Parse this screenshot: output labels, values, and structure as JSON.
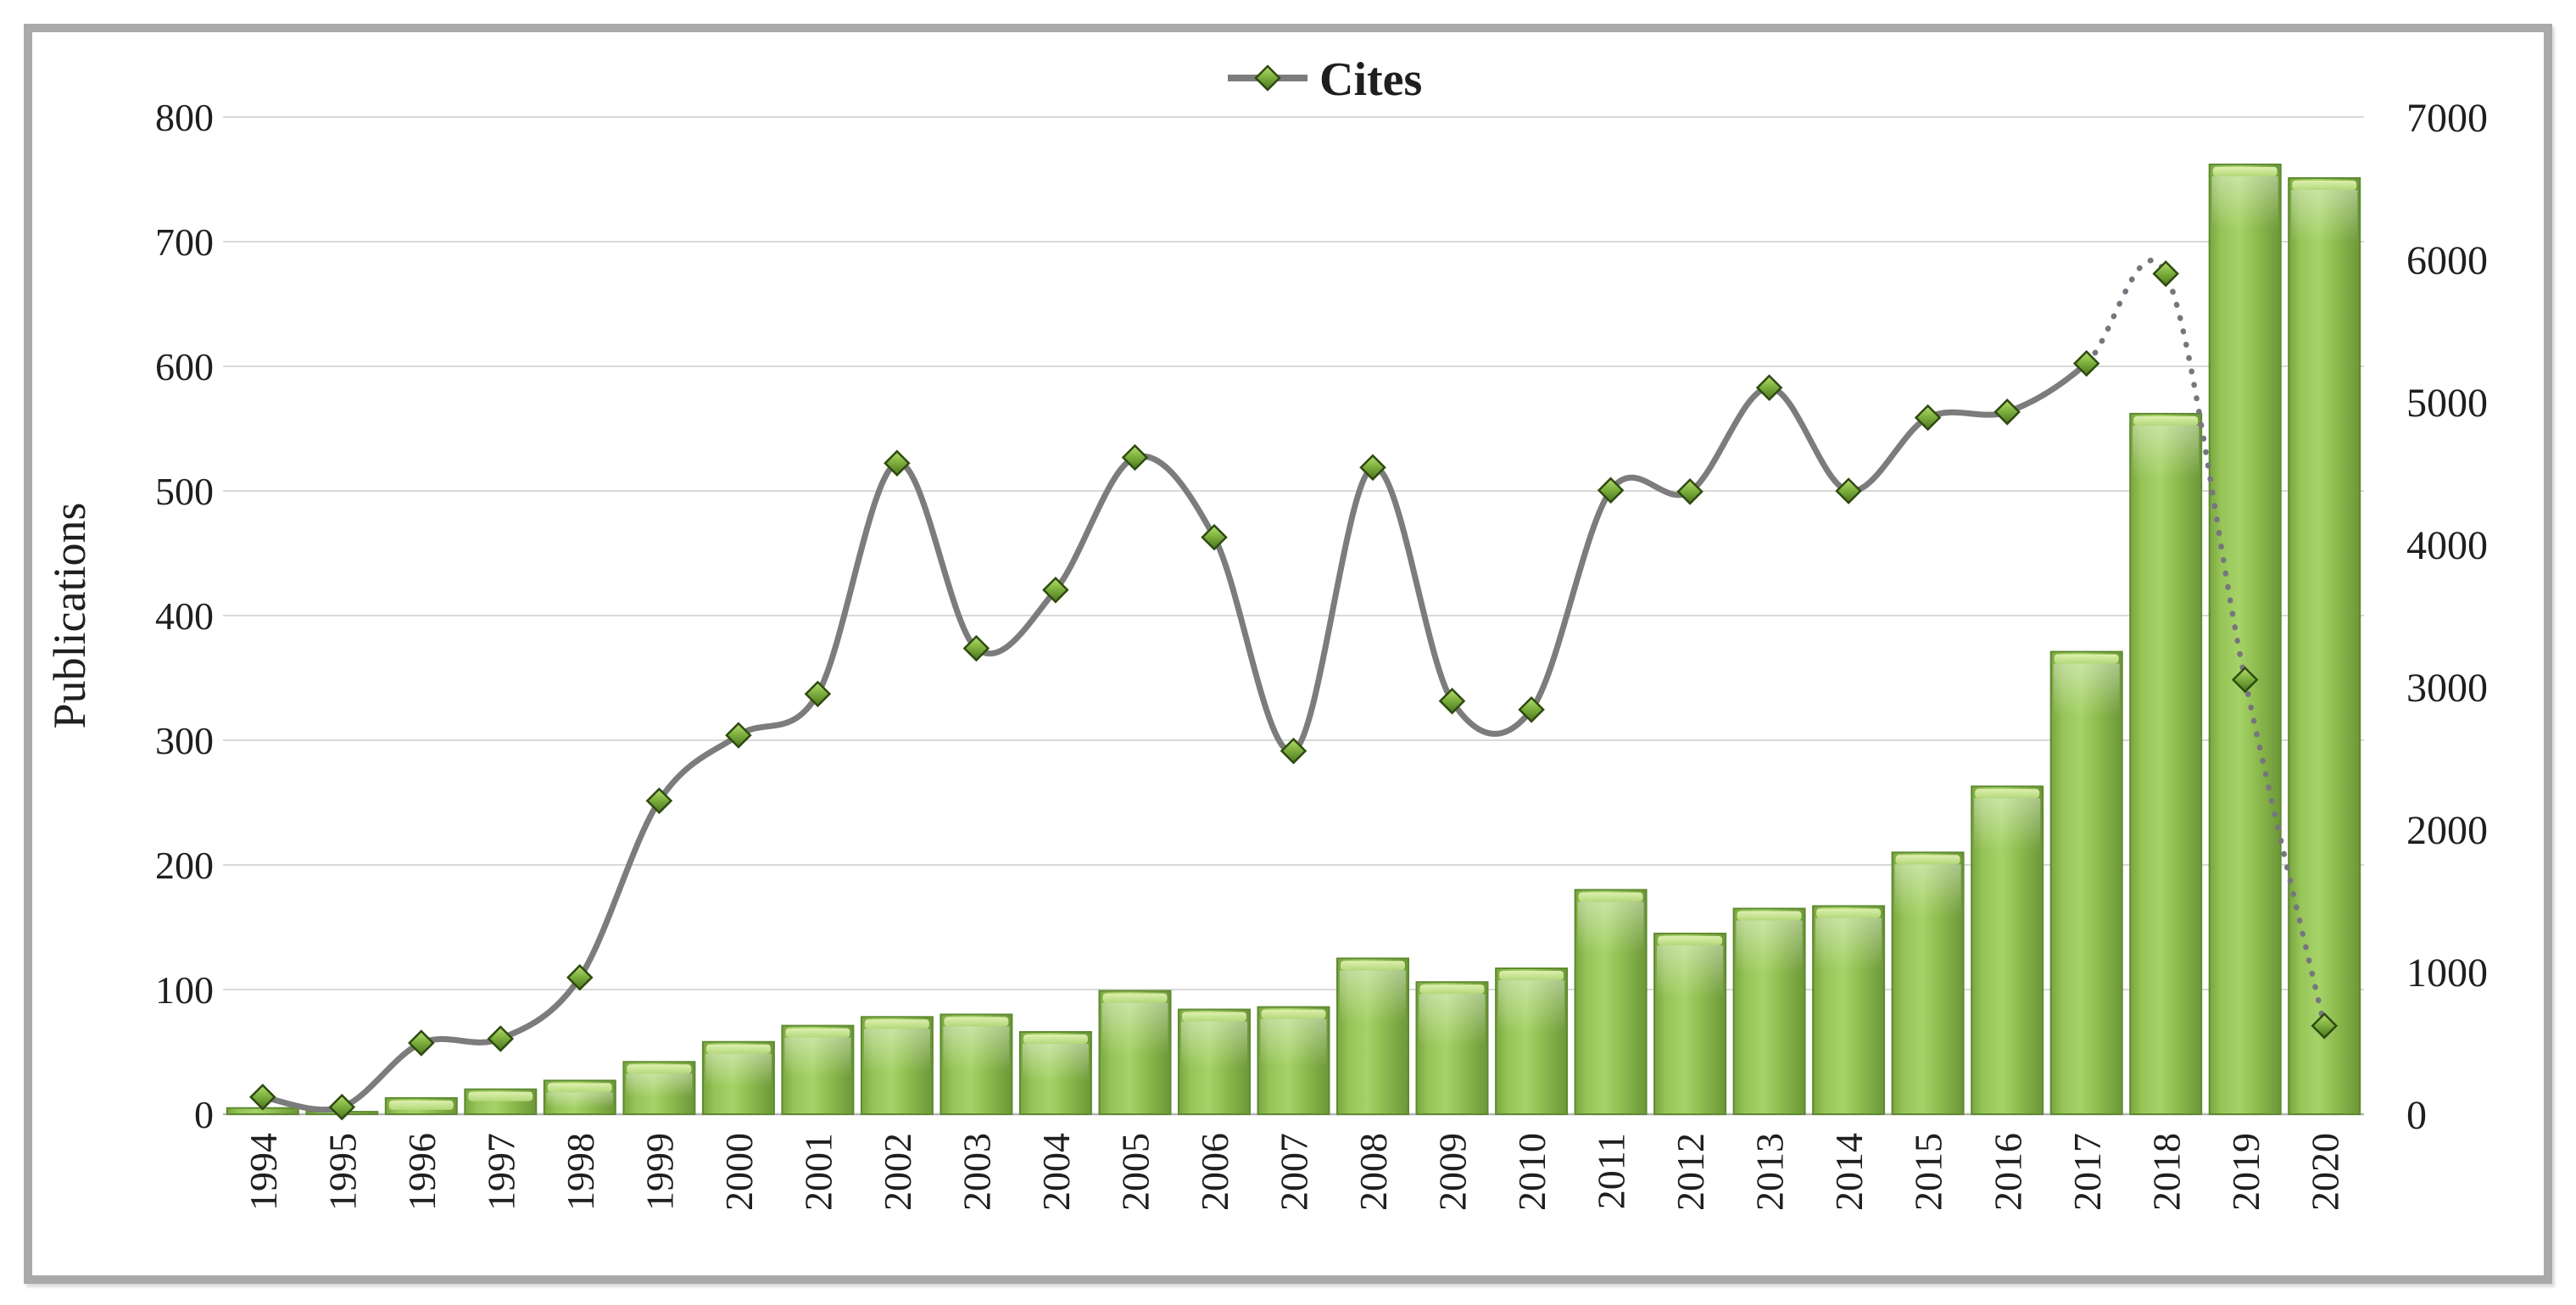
{
  "chart_data": {
    "type": "bar",
    "subtype": "bar+line-dual-axis",
    "title": "",
    "categories": [
      "1994",
      "1995",
      "1996",
      "1997",
      "1998",
      "1999",
      "2000",
      "2001",
      "2002",
      "2003",
      "2004",
      "2005",
      "2006",
      "2007",
      "2008",
      "2009",
      "2010",
      "2011",
      "2012",
      "2013",
      "2014",
      "2015",
      "2016",
      "2017",
      "2018",
      "2019",
      "2020"
    ],
    "series": [
      {
        "name": "Publications",
        "type": "bar",
        "axis": "left",
        "values": [
          5,
          2,
          13,
          20,
          27,
          42,
          58,
          71,
          78,
          80,
          66,
          99,
          84,
          86,
          125,
          106,
          117,
          180,
          145,
          165,
          167,
          210,
          263,
          371,
          562,
          762,
          751
        ]
      },
      {
        "name": "Cites",
        "type": "line",
        "axis": "right",
        "smooth": true,
        "marker": "diamond",
        "dotted_from_index": 23,
        "values": [
          120,
          50,
          500,
          530,
          960,
          2200,
          2660,
          2950,
          4570,
          3270,
          3680,
          4610,
          4050,
          2550,
          4540,
          2900,
          2840,
          4380,
          4370,
          5100,
          4375,
          4890,
          4930,
          5270,
          5900,
          3050,
          620
        ]
      }
    ],
    "xlabel": "",
    "ylabel_left": "Publications",
    "ylabel_right": "",
    "axes": {
      "left": {
        "min": 0,
        "max": 800,
        "ticks": [
          0,
          100,
          200,
          300,
          400,
          500,
          600,
          700,
          800
        ]
      },
      "right": {
        "min": 0,
        "max": 7000,
        "ticks": [
          0,
          1000,
          2000,
          3000,
          4000,
          5000,
          6000,
          7000
        ]
      }
    },
    "grid": "horizontal",
    "legend": {
      "label": "Cites",
      "position": "top-center",
      "marker": "diamond-on-line"
    },
    "colors": {
      "bar_fill": "#8fbf52",
      "bar_edge": "#5e8a31",
      "bar_bevel": "#d6eaa4",
      "line": "#7c7c7c",
      "line_dotted": "#76767e",
      "marker_fill": "#76a93c",
      "marker_edge": "#2e4a10",
      "gridline": "#d9d9d9",
      "axis_line": "#b5b5b5",
      "text": "#1f1f1f",
      "frame": "#a9a9a9"
    }
  }
}
